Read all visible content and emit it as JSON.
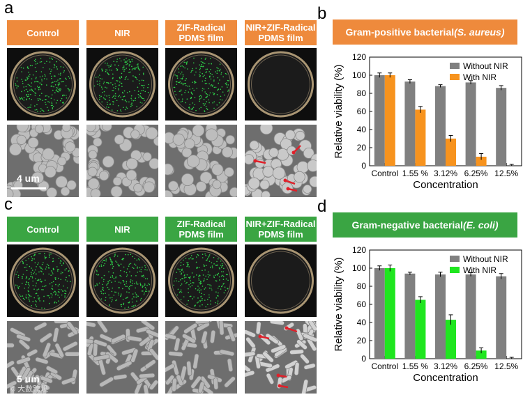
{
  "panels": {
    "a": {
      "letter": "a",
      "headers": [
        "Control",
        "NIR",
        "ZIF-Radical\nPDMS film",
        "NIR+ZIF-Radical\nPDMS film"
      ],
      "color": "#ee8a3c",
      "scale": "4 um"
    },
    "c": {
      "letter": "c",
      "headers": [
        "Control",
        "NIR",
        "ZIF-Radical\nPDMS film",
        "NIR+ZIF-Radical\nPDMS film"
      ],
      "color": "#3aa543",
      "scale": "5 um"
    }
  },
  "watermark": "© 大数跨境",
  "chart_data": [
    {
      "panel": "b",
      "type": "bar",
      "title_main": "Gram-positive bacterial ",
      "title_species": "(S. aureus)",
      "title_color": "#ee8a3c",
      "categories": [
        "Control",
        "1.55 %",
        "3.12%",
        "6.25%",
        "12.5%"
      ],
      "series": [
        {
          "name": "Without NIR",
          "color": "#808080",
          "values": [
            100,
            93,
            88,
            92,
            86
          ],
          "errors": [
            2.5,
            2,
            1.5,
            2,
            2.5
          ]
        },
        {
          "name": "With NIR",
          "color": "#f7931e",
          "values": [
            100,
            62,
            30,
            10,
            0
          ],
          "errors": [
            2.5,
            3.5,
            3.5,
            3.5,
            1.5
          ]
        }
      ],
      "xlabel": "Concentration",
      "ylabel": "Relative viability (%)",
      "ylim": [
        0,
        120
      ],
      "yticks": [
        0,
        20,
        40,
        60,
        80,
        100,
        120
      ],
      "legend": "top-right",
      "grid": false
    },
    {
      "panel": "d",
      "type": "bar",
      "title_main": "Gram-negative bacterial ",
      "title_species": "(E. coli)",
      "title_color": "#3aa543",
      "categories": [
        "Control",
        "1.55 %",
        "3.12%",
        "6.25%",
        "12.5%"
      ],
      "series": [
        {
          "name": "Without NIR",
          "color": "#808080",
          "values": [
            100,
            94,
            93,
            93,
            91
          ],
          "errors": [
            2.5,
            1.5,
            2.5,
            2,
            3
          ]
        },
        {
          "name": "With NIR",
          "color": "#1fe61f",
          "values": [
            100,
            65,
            43,
            9,
            0
          ],
          "errors": [
            3.5,
            3.5,
            5.5,
            3,
            1.5
          ]
        }
      ],
      "xlabel": "Concentration",
      "ylabel": "Relative viability (%)",
      "ylim": [
        0,
        120
      ],
      "yticks": [
        0,
        20,
        40,
        60,
        80,
        100,
        120
      ],
      "legend": "top-right",
      "grid": false
    }
  ]
}
